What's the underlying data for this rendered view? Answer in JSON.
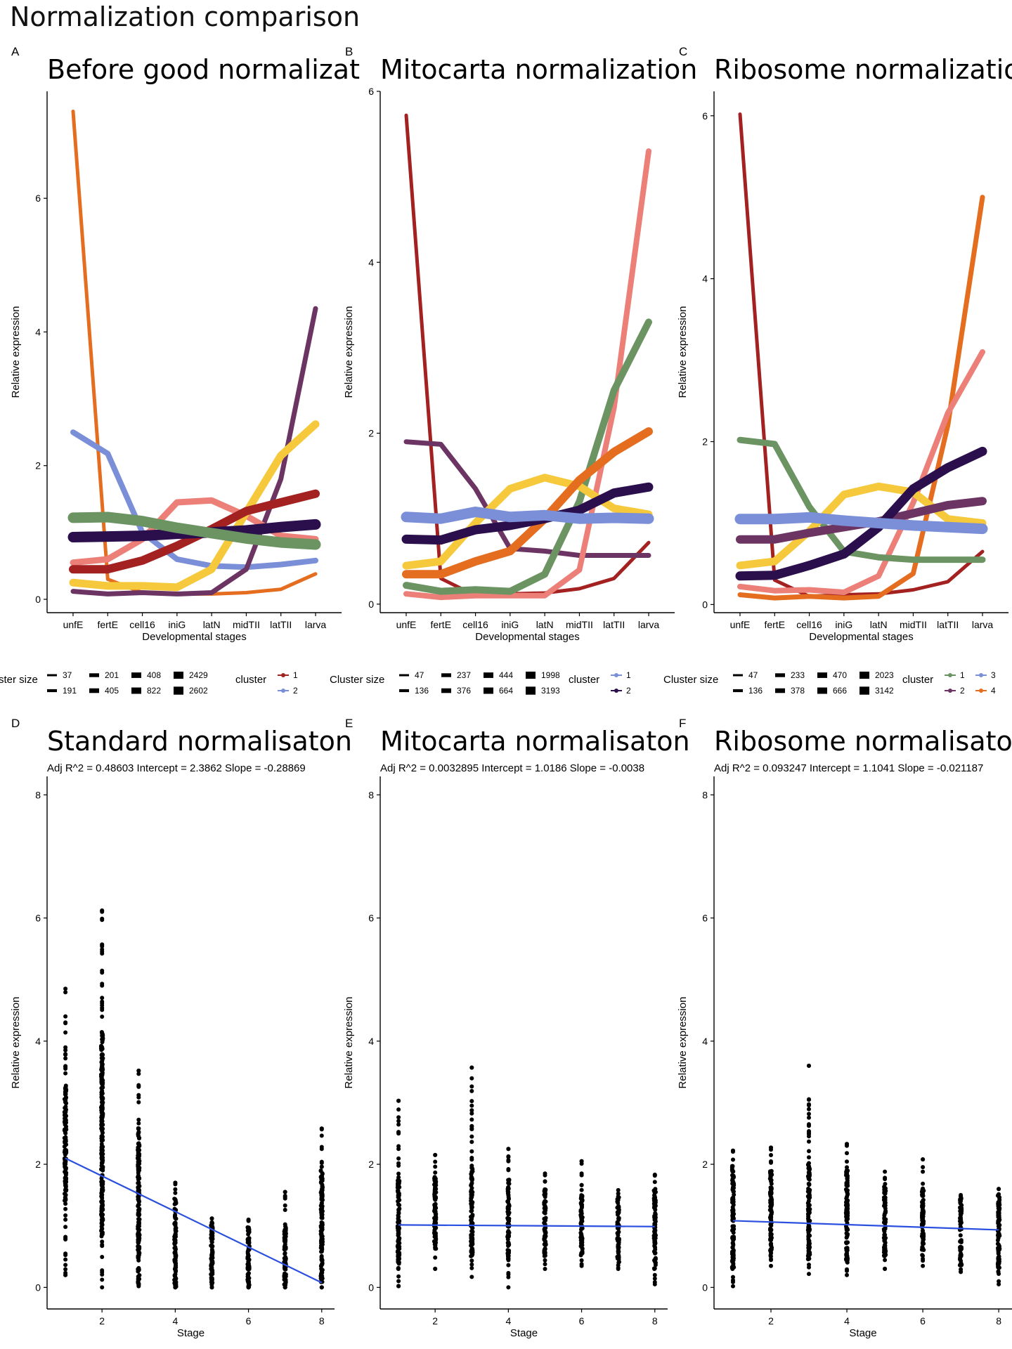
{
  "title": "Normalization comparison",
  "panels_top": [
    {
      "letter": "A",
      "title": "Before good normalizat",
      "legend": {
        "size_title": "ster size",
        "sizes": [
          "37",
          "191",
          "201",
          "405",
          "408",
          "822",
          "2429",
          "2602"
        ],
        "cluster_title": "cluster",
        "clusters": [
          "1",
          "2"
        ]
      }
    },
    {
      "letter": "B",
      "title": "Mitocarta normalization",
      "legend": {
        "size_title": "Cluster size",
        "sizes": [
          "47",
          "136",
          "237",
          "376",
          "444",
          "664",
          "1998",
          "3193"
        ],
        "cluster_title": "cluster",
        "clusters": [
          "1",
          "2"
        ]
      }
    },
    {
      "letter": "C",
      "title": "Ribosome normalization",
      "legend": {
        "size_title": "Cluster size",
        "sizes": [
          "47",
          "136",
          "233",
          "378",
          "470",
          "666",
          "2023",
          "3142"
        ],
        "cluster_title": "cluster",
        "clusters": [
          "1",
          "2",
          "3",
          "4"
        ]
      }
    }
  ],
  "panels_bottom": [
    {
      "letter": "D",
      "title": "Standard normalisaton",
      "subtitle": "Adj R^2 =  0.48603 Intercept =  2.3862 Slope =  -0.28869"
    },
    {
      "letter": "E",
      "title": "Mitocarta normalisaton",
      "subtitle": "Adj R^2 =  0.0032895 Intercept =  1.0186 Slope =  -0.0038"
    },
    {
      "letter": "F",
      "title": "Ribosome normalisaton",
      "subtitle": "Adj R^2 =  0.093247 Intercept =  1.1041 Slope =  -0.021187"
    }
  ],
  "colors": {
    "red": "#a32121",
    "blue": "#7a8fd8",
    "purple": "#6b3462",
    "darkpurple": "#2b0f4c",
    "orange": "#e46d1f",
    "yellow": "#f5c93b",
    "salmon": "#ec8079",
    "green": "#6b9462",
    "regression": "#2b50e0",
    "points": "#000000"
  },
  "chart_data": [
    {
      "type": "line",
      "xlabel": "Developmental stages",
      "ylabel": "Relative expression",
      "categories": [
        "unfE",
        "fertE",
        "cell16",
        "iniG",
        "latN",
        "midTII",
        "latTII",
        "larva"
      ],
      "ylim": [
        -0.2,
        7.6
      ],
      "yticks": [
        0,
        2,
        4,
        6
      ],
      "series": [
        {
          "color": "orange",
          "width": 5,
          "values": [
            7.3,
            0.3,
            0.1,
            0.08,
            0.08,
            0.1,
            0.15,
            0.38
          ]
        },
        {
          "color": "blue",
          "width": 8,
          "values": [
            2.5,
            2.18,
            1.0,
            0.6,
            0.5,
            0.48,
            0.52,
            0.58
          ]
        },
        {
          "color": "purple",
          "width": 7,
          "values": [
            0.12,
            0.08,
            0.1,
            0.08,
            0.1,
            0.45,
            1.8,
            4.35
          ]
        },
        {
          "color": "salmon",
          "width": 9,
          "values": [
            0.55,
            0.6,
            0.9,
            1.45,
            1.48,
            1.25,
            0.95,
            0.9
          ]
        },
        {
          "color": "yellow",
          "width": 11,
          "values": [
            0.25,
            0.2,
            0.2,
            0.18,
            0.45,
            1.3,
            2.15,
            2.62
          ]
        },
        {
          "color": "red",
          "width": 12,
          "values": [
            0.45,
            0.45,
            0.58,
            0.8,
            1.05,
            1.32,
            1.45,
            1.58
          ]
        },
        {
          "color": "darkpurple",
          "width": 15,
          "values": [
            0.93,
            0.94,
            0.95,
            0.98,
            1.0,
            1.03,
            1.08,
            1.12
          ]
        },
        {
          "color": "green",
          "width": 15,
          "values": [
            1.22,
            1.23,
            1.17,
            1.07,
            0.99,
            0.91,
            0.85,
            0.82
          ]
        }
      ]
    },
    {
      "type": "line",
      "xlabel": "Developmental stages",
      "ylabel": "Relative expression",
      "categories": [
        "unfE",
        "fertE",
        "cell16",
        "iniG",
        "latN",
        "midTII",
        "latTII",
        "larva"
      ],
      "ylim": [
        -0.1,
        6.0
      ],
      "yticks": [
        0,
        2,
        4,
        6
      ],
      "series": [
        {
          "color": "red",
          "width": 5,
          "values": [
            5.72,
            0.3,
            0.1,
            0.12,
            0.13,
            0.18,
            0.3,
            0.72
          ]
        },
        {
          "color": "purple",
          "width": 7,
          "values": [
            1.9,
            1.87,
            1.35,
            0.65,
            0.62,
            0.57,
            0.57,
            0.57
          ]
        },
        {
          "color": "salmon",
          "width": 8,
          "values": [
            0.12,
            0.08,
            0.1,
            0.1,
            0.1,
            0.4,
            2.3,
            5.3
          ]
        },
        {
          "color": "green",
          "width": 10,
          "values": [
            0.22,
            0.15,
            0.17,
            0.15,
            0.35,
            1.2,
            2.5,
            3.3
          ]
        },
        {
          "color": "yellow",
          "width": 11,
          "values": [
            0.45,
            0.5,
            0.95,
            1.35,
            1.48,
            1.38,
            1.12,
            1.05
          ]
        },
        {
          "color": "orange",
          "width": 12,
          "values": [
            0.35,
            0.35,
            0.5,
            0.62,
            1.0,
            1.45,
            1.78,
            2.02
          ]
        },
        {
          "color": "darkpurple",
          "width": 13,
          "values": [
            0.76,
            0.75,
            0.87,
            0.92,
            1.0,
            1.1,
            1.3,
            1.37
          ]
        },
        {
          "color": "blue",
          "width": 15,
          "values": [
            1.02,
            1.0,
            1.08,
            1.02,
            1.04,
            1.0,
            1.01,
            1.0
          ]
        }
      ]
    },
    {
      "type": "line",
      "xlabel": "Developmental stages",
      "ylabel": "Relative expression",
      "categories": [
        "unfE",
        "fertE",
        "cell16",
        "iniG",
        "latN",
        "midTII",
        "latTII",
        "larva"
      ],
      "ylim": [
        -0.1,
        6.3
      ],
      "yticks": [
        0,
        2,
        4,
        6
      ],
      "series": [
        {
          "color": "red",
          "width": 5,
          "values": [
            6.02,
            0.3,
            0.1,
            0.12,
            0.13,
            0.18,
            0.28,
            0.65
          ]
        },
        {
          "color": "orange",
          "width": 7,
          "values": [
            0.12,
            0.08,
            0.1,
            0.08,
            0.1,
            0.38,
            2.2,
            5.0
          ]
        },
        {
          "color": "salmon",
          "width": 8,
          "values": [
            0.22,
            0.17,
            0.18,
            0.15,
            0.35,
            1.25,
            2.35,
            3.1
          ]
        },
        {
          "color": "green",
          "width": 9,
          "values": [
            2.02,
            1.97,
            1.2,
            0.65,
            0.58,
            0.55,
            0.55,
            0.55
          ]
        },
        {
          "color": "yellow",
          "width": 11,
          "values": [
            0.48,
            0.53,
            0.9,
            1.35,
            1.45,
            1.38,
            1.05,
            1.0
          ]
        },
        {
          "color": "purple",
          "width": 12,
          "values": [
            0.8,
            0.8,
            0.88,
            0.95,
            1.02,
            1.12,
            1.22,
            1.27
          ]
        },
        {
          "color": "darkpurple",
          "width": 13,
          "values": [
            0.35,
            0.36,
            0.48,
            0.62,
            0.95,
            1.42,
            1.68,
            1.88
          ]
        },
        {
          "color": "blue",
          "width": 15,
          "values": [
            1.05,
            1.05,
            1.07,
            1.03,
            1.0,
            0.97,
            0.95,
            0.93
          ]
        }
      ]
    },
    {
      "type": "scatter",
      "xlabel": "Stage",
      "ylabel": "Relative expression",
      "xlim": [
        0.5,
        8.35
      ],
      "ylim": [
        -0.35,
        8.3
      ],
      "xticks": [
        2,
        4,
        6,
        8
      ],
      "yticks": [
        0,
        2,
        4,
        6,
        8
      ],
      "regression": {
        "intercept": 2.3862,
        "slope": -0.28869
      },
      "columns": [
        {
          "x": 1,
          "min": 0.2,
          "max": 4.85,
          "dense_min": 1.4,
          "dense_max": 3.3,
          "outliers": [
            0.2,
            0.78,
            1.1
          ]
        },
        {
          "x": 2,
          "min": 0.0,
          "max": 6.12,
          "dense_min": 0.8,
          "dense_max": 4.2,
          "outliers": [
            4.58,
            6.12
          ]
        },
        {
          "x": 3,
          "min": 0.02,
          "max": 3.52,
          "dense_min": 0.05,
          "dense_max": 2.6,
          "outliers": [
            3.52
          ]
        },
        {
          "x": 4,
          "min": 0.0,
          "max": 1.7,
          "dense_min": 0.0,
          "dense_max": 1.45,
          "outliers": [
            1.7
          ]
        },
        {
          "x": 5,
          "min": 0.0,
          "max": 1.12,
          "dense_min": 0.0,
          "dense_max": 1.05,
          "outliers": []
        },
        {
          "x": 6,
          "min": 0.0,
          "max": 1.1,
          "dense_min": 0.0,
          "dense_max": 1.05,
          "outliers": []
        },
        {
          "x": 7,
          "min": 0.0,
          "max": 1.55,
          "dense_min": 0.0,
          "dense_max": 1.0,
          "outliers": [
            1.55
          ]
        },
        {
          "x": 8,
          "min": 0.0,
          "max": 2.58,
          "dense_min": 0.0,
          "dense_max": 1.9,
          "outliers": [
            2.58,
            2.25
          ]
        }
      ]
    },
    {
      "type": "scatter",
      "xlabel": "Stage",
      "ylabel": "Relative expression",
      "xlim": [
        0.5,
        8.35
      ],
      "ylim": [
        -0.35,
        8.3
      ],
      "xticks": [
        2,
        4,
        6,
        8
      ],
      "yticks": [
        0,
        2,
        4,
        6,
        8
      ],
      "regression": {
        "intercept": 1.0186,
        "slope": -0.0038
      },
      "columns": [
        {
          "x": 1,
          "min": 0.02,
          "max": 3.03,
          "dense_min": 0.3,
          "dense_max": 1.75,
          "outliers": [
            3.03,
            2.5
          ]
        },
        {
          "x": 2,
          "min": 0.3,
          "max": 2.15,
          "dense_min": 0.5,
          "dense_max": 1.8,
          "outliers": [
            2.15
          ]
        },
        {
          "x": 3,
          "min": 0.17,
          "max": 3.57,
          "dense_min": 0.45,
          "dense_max": 1.95,
          "outliers": [
            3.57,
            2.62,
            2.45
          ]
        },
        {
          "x": 4,
          "min": 0.0,
          "max": 2.25,
          "dense_min": 0.4,
          "dense_max": 1.75,
          "outliers": [
            2.25,
            2.12
          ]
        },
        {
          "x": 5,
          "min": 0.3,
          "max": 1.85,
          "dense_min": 0.5,
          "dense_max": 1.6,
          "outliers": []
        },
        {
          "x": 6,
          "min": 0.35,
          "max": 2.05,
          "dense_min": 0.5,
          "dense_max": 1.5,
          "outliers": [
            2.05,
            1.85
          ]
        },
        {
          "x": 7,
          "min": 0.3,
          "max": 1.58,
          "dense_min": 0.4,
          "dense_max": 1.5,
          "outliers": []
        },
        {
          "x": 8,
          "min": 0.05,
          "max": 1.83,
          "dense_min": 0.3,
          "dense_max": 1.6,
          "outliers": [
            1.83
          ]
        }
      ]
    },
    {
      "type": "scatter",
      "xlabel": "Stage",
      "ylabel": "Relative expression",
      "xlim": [
        0.5,
        8.35
      ],
      "ylim": [
        -0.35,
        8.3
      ],
      "xticks": [
        2,
        4,
        6,
        8
      ],
      "yticks": [
        0,
        2,
        4,
        6,
        8
      ],
      "regression": {
        "intercept": 1.1041,
        "slope": -0.021187
      },
      "columns": [
        {
          "x": 1,
          "min": 0.02,
          "max": 2.22,
          "dense_min": 0.3,
          "dense_max": 2.0,
          "outliers": [
            2.22
          ]
        },
        {
          "x": 2,
          "min": 0.35,
          "max": 2.27,
          "dense_min": 0.5,
          "dense_max": 1.9,
          "outliers": [
            2.27
          ]
        },
        {
          "x": 3,
          "min": 0.22,
          "max": 3.6,
          "dense_min": 0.45,
          "dense_max": 2.0,
          "outliers": [
            3.6,
            2.65,
            2.5
          ]
        },
        {
          "x": 4,
          "min": 0.2,
          "max": 2.33,
          "dense_min": 0.4,
          "dense_max": 1.9,
          "outliers": [
            2.33,
            2.18
          ]
        },
        {
          "x": 5,
          "min": 0.3,
          "max": 1.88,
          "dense_min": 0.5,
          "dense_max": 1.7,
          "outliers": []
        },
        {
          "x": 6,
          "min": 0.35,
          "max": 2.08,
          "dense_min": 0.5,
          "dense_max": 1.6,
          "outliers": [
            2.08
          ]
        },
        {
          "x": 7,
          "min": 0.25,
          "max": 1.5,
          "dense_min": 0.35,
          "dense_max": 1.45,
          "outliers": []
        },
        {
          "x": 8,
          "min": 0.05,
          "max": 1.6,
          "dense_min": 0.25,
          "dense_max": 1.5,
          "outliers": []
        }
      ]
    }
  ]
}
